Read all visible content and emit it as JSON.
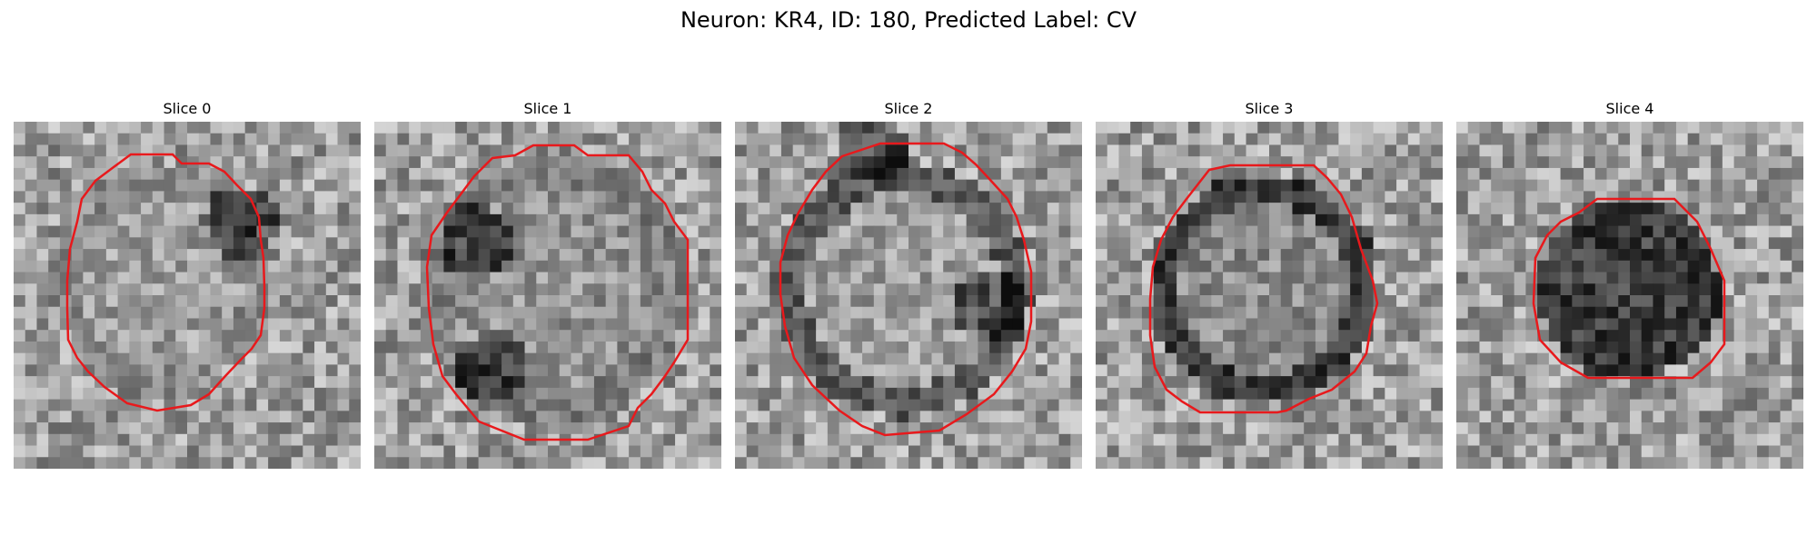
{
  "figure": {
    "title": "Neuron: KR4, ID: 180, Predicted Label: CV",
    "panels": [
      {
        "label": "Slice 0",
        "contour_color": "#e8191c"
      },
      {
        "label": "Slice 1",
        "contour_color": "#e8191c"
      },
      {
        "label": "Slice 2",
        "contour_color": "#e8191c"
      },
      {
        "label": "Slice 3",
        "contour_color": "#e8191c"
      },
      {
        "label": "Slice 4",
        "contour_color": "#e8191c"
      }
    ]
  }
}
